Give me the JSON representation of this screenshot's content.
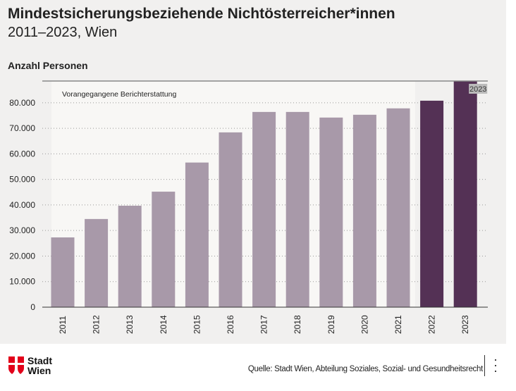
{
  "chart_data": {
    "type": "bar",
    "title": "Mindestsicherungsbeziehende Nichtösterreicher*innen",
    "subtitle": "2011–2023, Wien",
    "ylabel": "Anzahl Personen",
    "xlabel": "",
    "categories": [
      "2011",
      "2012",
      "2013",
      "2014",
      "2015",
      "2016",
      "2017",
      "2018",
      "2019",
      "2020",
      "2021",
      "2022",
      "2023"
    ],
    "values": [
      27300,
      34500,
      39700,
      45200,
      56600,
      68400,
      76400,
      76400,
      74200,
      75300,
      77800,
      80800,
      88600
    ],
    "ylim": [
      0,
      88500
    ],
    "yticks": [
      0,
      10000,
      20000,
      30000,
      40000,
      50000,
      60000,
      70000,
      80000
    ],
    "ytick_labels": [
      "0",
      "10.000",
      "20.000",
      "30.000",
      "40.000",
      "50.000",
      "60.000",
      "70.000",
      "80.000"
    ],
    "grid": true,
    "highlight_region": {
      "label": "Vorangegangene Berichterstattung",
      "from": "2011",
      "to": "2021"
    },
    "value_label": "2023",
    "colors": {
      "previous": "#a899a9",
      "current": "#543155",
      "region": "#f8f7f5",
      "background": "#f1f0ef"
    }
  },
  "footer": {
    "logo_line1": "Stadt",
    "logo_line2": "Wien",
    "source": "Quelle: Stadt Wien, Abteilung Soziales, Sozial- und Gesundheitsrecht",
    "menu_icon": "more-vertical-icon"
  }
}
